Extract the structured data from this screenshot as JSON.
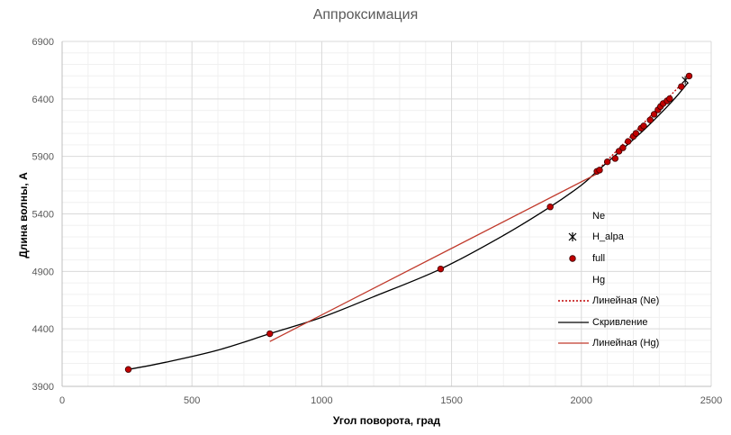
{
  "chart_data": {
    "type": "scatter",
    "title": "Аппроксимация",
    "xlabel": "Угол поворота, град",
    "ylabel": "Длина волны, А",
    "xlim": [
      0,
      2500
    ],
    "ylim": [
      3900,
      6900
    ],
    "xticks": [
      "0",
      "500",
      "1000",
      "1500",
      "2000",
      "2500"
    ],
    "yticks": [
      "3900",
      "4400",
      "4900",
      "5400",
      "5900",
      "6400",
      "6900"
    ],
    "grid": true,
    "legend_position": "right",
    "series": [
      {
        "name": "Ne",
        "kind": "points",
        "marker": "none",
        "x": [],
        "y": []
      },
      {
        "name": "H_alpa",
        "kind": "points",
        "marker": "asterisk",
        "color": "#000000",
        "x": [
          2400
        ],
        "y": [
          6563
        ]
      },
      {
        "name": "full",
        "kind": "points",
        "marker": "circle",
        "color": "#C00000",
        "x": [
          255,
          800,
          1458,
          1880,
          2060,
          2070,
          2100,
          2130,
          2145,
          2160,
          2180,
          2200,
          2210,
          2230,
          2240,
          2265,
          2280,
          2295,
          2305,
          2315,
          2330,
          2340,
          2385,
          2415
        ],
        "y": [
          4047,
          4358,
          4921,
          5461,
          5770,
          5781,
          5853,
          5882,
          5945,
          5975,
          6030,
          6074,
          6100,
          6145,
          6165,
          6217,
          6266,
          6305,
          6334,
          6360,
          6383,
          6402,
          6507,
          6599
        ]
      },
      {
        "name": "Hg",
        "kind": "points",
        "marker": "none",
        "x": [],
        "y": []
      },
      {
        "name": "Линейная (Ne)",
        "kind": "trendline",
        "style": "dotted",
        "color": "#C00000",
        "x": [
          2050,
          2425
        ],
        "y": [
          5750,
          6620
        ]
      },
      {
        "name": "Скривление",
        "kind": "curve",
        "style": "solid",
        "color": "#000000",
        "x": [
          255,
          400,
          600,
          800,
          1000,
          1200,
          1458,
          1700,
          1880,
          2000,
          2060,
          2150,
          2250,
          2350,
          2410
        ],
        "y": [
          4047,
          4110,
          4215,
          4358,
          4500,
          4680,
          4921,
          5213,
          5461,
          5650,
          5770,
          5947,
          6150,
          6380,
          6540
        ]
      },
      {
        "name": "Линейная (Hg)",
        "kind": "trendline",
        "style": "solid",
        "color": "#C0392B",
        "x": [
          800,
          2070
        ],
        "y": [
          4290,
          5760
        ]
      }
    ]
  }
}
